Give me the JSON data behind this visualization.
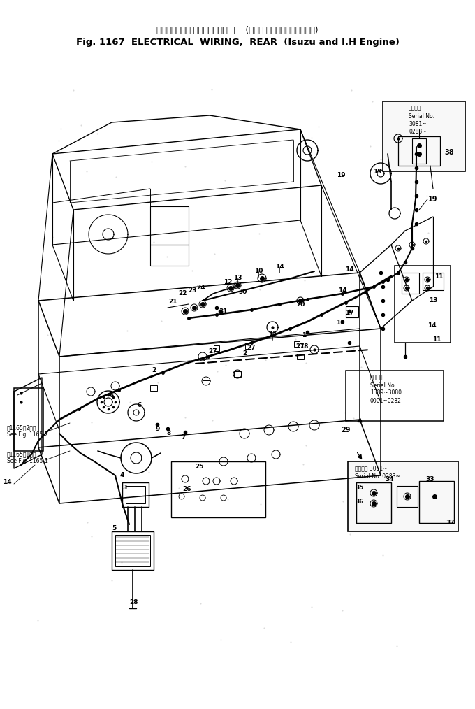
{
  "title_jp": "エレクトリカル ワイヤリング、 後    (いず およびインタエンジン)",
  "title_en": "Fig. 1167  ELECTRICAL  WIRING,  REAR  (Isuzu and I.H Engine)",
  "bg": "#ffffff",
  "lc": "#000000",
  "fw": 6.8,
  "fh": 10.14,
  "dpi": 100,
  "serial1": "Serial No.\n3081~\n0283~",
  "serial1_jp": "適用番号",
  "serial2_jp": "適用番号",
  "serial2": "Serial No.\n1389~3080\n0001~0282",
  "serial3_jp": "適用番号 3081~",
  "serial3": "Serial No. 0283~",
  "see1": "図1165図2参照\nSee Fig. 1165-2",
  "see2": "図1165図1参照\nSee Fig. 1165-1"
}
